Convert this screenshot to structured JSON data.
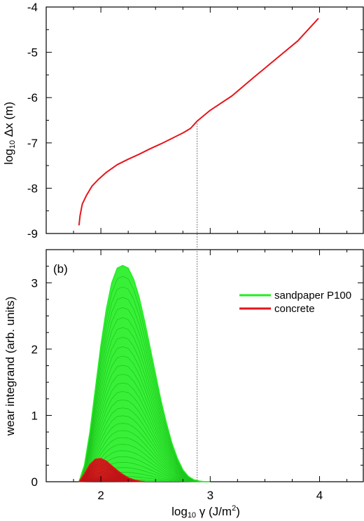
{
  "chart_data": [
    {
      "type": "line",
      "panel": "top",
      "xlabel": "log10 γ (J/m2)",
      "ylabel": "log10 Δx  (m)",
      "xlim": [
        1.5,
        4.4
      ],
      "ylim": [
        -9,
        -4
      ],
      "xticks": [
        "2",
        "3",
        "4"
      ],
      "yticks": [
        "-4",
        "-5",
        "-6",
        "-7",
        "-8",
        "-9"
      ],
      "grid": false,
      "series": [
        {
          "color": "#e8141b",
          "x": [
            1.8,
            1.81,
            1.83,
            1.87,
            1.92,
            1.98,
            2.05,
            2.15,
            2.25,
            2.35,
            2.45,
            2.55,
            2.65,
            2.75,
            2.82,
            2.88,
            3.0,
            3.2,
            3.4,
            3.6,
            3.8,
            3.99
          ],
          "y": [
            -8.82,
            -8.6,
            -8.35,
            -8.15,
            -7.95,
            -7.8,
            -7.65,
            -7.48,
            -7.36,
            -7.25,
            -7.13,
            -7.02,
            -6.9,
            -6.78,
            -6.68,
            -6.52,
            -6.28,
            -5.96,
            -5.55,
            -5.15,
            -4.75,
            -4.25
          ]
        }
      ],
      "annotations": [
        {
          "type": "vline",
          "x": 2.88,
          "style": "dotted"
        }
      ]
    },
    {
      "type": "area",
      "panel": "bottom",
      "panel_label": "(b)",
      "xlabel": "log10 γ (J/m2)",
      "ylabel": "wear integrand  (arb. units)",
      "xlim": [
        1.5,
        4.4
      ],
      "ylim": [
        0,
        3.5
      ],
      "xticks": [
        "2",
        "3",
        "4"
      ],
      "yticks": [
        "0",
        "1",
        "2",
        "3"
      ],
      "grid": false,
      "legend_position": "top-right",
      "series": [
        {
          "name": "sandpaper P100",
          "color": "#22ee22",
          "x": [
            1.8,
            1.85,
            1.9,
            1.95,
            2.0,
            2.05,
            2.1,
            2.15,
            2.2,
            2.25,
            2.3,
            2.35,
            2.4,
            2.45,
            2.5,
            2.55,
            2.6,
            2.65,
            2.7,
            2.75,
            2.8,
            2.85,
            2.9,
            2.95,
            3.0
          ],
          "y": [
            0.0,
            0.25,
            0.75,
            1.4,
            2.05,
            2.6,
            3.0,
            3.22,
            3.26,
            3.22,
            3.05,
            2.78,
            2.42,
            2.02,
            1.62,
            1.22,
            0.88,
            0.58,
            0.35,
            0.18,
            0.08,
            0.03,
            0.01,
            0.0,
            0.0
          ]
        },
        {
          "name": "concrete",
          "color": "#e8141b",
          "x": [
            1.8,
            1.85,
            1.9,
            1.95,
            2.0,
            2.05,
            2.1,
            2.15,
            2.2,
            2.25,
            2.3,
            2.35,
            2.4
          ],
          "y": [
            0.0,
            0.12,
            0.26,
            0.34,
            0.35,
            0.31,
            0.24,
            0.17,
            0.11,
            0.06,
            0.03,
            0.01,
            0.0
          ]
        }
      ]
    }
  ]
}
